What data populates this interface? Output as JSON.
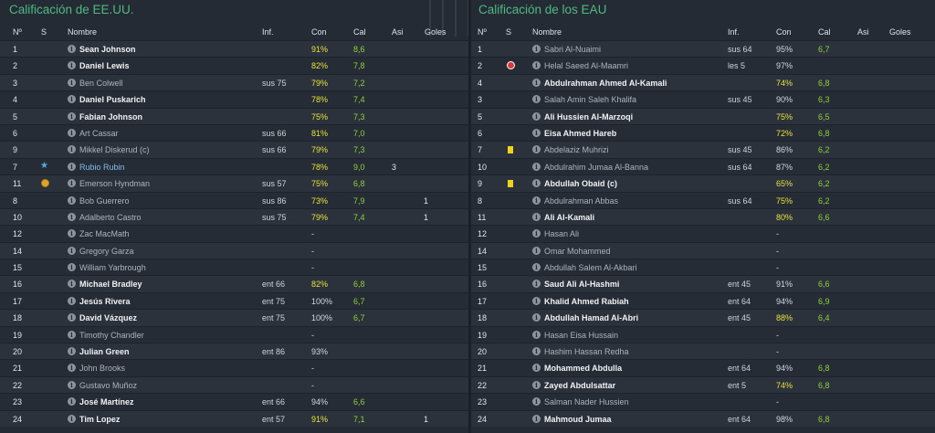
{
  "left": {
    "title": "Calificación de EE.UU.",
    "headers": {
      "num": "Nº",
      "s": "S",
      "name": "Nombre",
      "inf": "Inf.",
      "con": "Con",
      "cal": "Cal",
      "asi": "Asi",
      "goles": "Goles"
    },
    "rows": [
      {
        "num": "1",
        "s": "",
        "name": "Sean Johnson",
        "style": "bold",
        "inf": "",
        "con": "91%",
        "conc": "y",
        "cal": "8,6",
        "asi": "",
        "goles": ""
      },
      {
        "num": "2",
        "s": "",
        "name": "Daniel Lewis",
        "style": "bold",
        "inf": "",
        "con": "82%",
        "conc": "y",
        "cal": "7,8",
        "asi": "",
        "goles": ""
      },
      {
        "num": "3",
        "s": "",
        "name": "Ben Colwell",
        "style": "dim",
        "inf": "sus 75",
        "con": "79%",
        "conc": "y",
        "cal": "7,2",
        "asi": "",
        "goles": ""
      },
      {
        "num": "4",
        "s": "",
        "name": "Daniel Puskarich",
        "style": "bold",
        "inf": "",
        "con": "78%",
        "conc": "y",
        "cal": "7,4",
        "asi": "",
        "goles": ""
      },
      {
        "num": "5",
        "s": "",
        "name": "Fabian Johnson",
        "style": "bold",
        "inf": "",
        "con": "75%",
        "conc": "y",
        "cal": "7,3",
        "asi": "",
        "goles": ""
      },
      {
        "num": "6",
        "s": "",
        "name": "Art Cassar",
        "style": "dim",
        "inf": "sus 66",
        "con": "81%",
        "conc": "y",
        "cal": "7,0",
        "asi": "",
        "goles": ""
      },
      {
        "num": "9",
        "s": "",
        "name": "Mikkel Diskerud (c)",
        "style": "dim",
        "inf": "sus 66",
        "con": "79%",
        "conc": "y",
        "cal": "7,3",
        "asi": "",
        "goles": ""
      },
      {
        "num": "7",
        "s": "star",
        "name": "Rubio Rubin",
        "style": "sub",
        "inf": "",
        "con": "78%",
        "conc": "y",
        "cal": "9,0",
        "asi": "3",
        "goles": ""
      },
      {
        "num": "11",
        "s": "motm",
        "name": "Emerson Hyndman",
        "style": "dim",
        "inf": "sus 57",
        "con": "75%",
        "conc": "y",
        "cal": "6,8",
        "asi": "",
        "goles": ""
      },
      {
        "num": "8",
        "s": "",
        "name": "Bob Guerrero",
        "style": "dim",
        "inf": "sus 86",
        "con": "73%",
        "conc": "y",
        "cal": "7,9",
        "asi": "",
        "goles": "1"
      },
      {
        "num": "10",
        "s": "",
        "name": "Adalberto Castro",
        "style": "dim",
        "inf": "sus 75",
        "con": "79%",
        "conc": "y",
        "cal": "7,4",
        "asi": "",
        "goles": "1"
      },
      {
        "num": "12",
        "s": "",
        "name": "Zac MacMath",
        "style": "dim",
        "inf": "",
        "con": "-",
        "conc": "w",
        "cal": "",
        "asi": "",
        "goles": ""
      },
      {
        "num": "14",
        "s": "",
        "name": "Gregory Garza",
        "style": "dim",
        "inf": "",
        "con": "-",
        "conc": "w",
        "cal": "",
        "asi": "",
        "goles": ""
      },
      {
        "num": "15",
        "s": "",
        "name": "William Yarbrough",
        "style": "dim",
        "inf": "",
        "con": "-",
        "conc": "w",
        "cal": "",
        "asi": "",
        "goles": ""
      },
      {
        "num": "16",
        "s": "",
        "name": "Michael Bradley",
        "style": "bold",
        "inf": "ent 66",
        "con": "82%",
        "conc": "y",
        "cal": "6,8",
        "asi": "",
        "goles": ""
      },
      {
        "num": "17",
        "s": "",
        "name": "Jesús Rivera",
        "style": "bold",
        "inf": "ent 75",
        "con": "100%",
        "conc": "w",
        "cal": "6,7",
        "asi": "",
        "goles": ""
      },
      {
        "num": "18",
        "s": "",
        "name": "David Vázquez",
        "style": "bold",
        "inf": "ent 75",
        "con": "100%",
        "conc": "w",
        "cal": "6,7",
        "asi": "",
        "goles": ""
      },
      {
        "num": "19",
        "s": "",
        "name": "Timothy Chandler",
        "style": "dim",
        "inf": "",
        "con": "-",
        "conc": "w",
        "cal": "",
        "asi": "",
        "goles": ""
      },
      {
        "num": "20",
        "s": "",
        "name": "Julian Green",
        "style": "bold",
        "inf": "ent 86",
        "con": "93%",
        "conc": "w",
        "cal": "",
        "asi": "",
        "goles": ""
      },
      {
        "num": "21",
        "s": "",
        "name": "John Brooks",
        "style": "dim",
        "inf": "",
        "con": "-",
        "conc": "w",
        "cal": "",
        "asi": "",
        "goles": ""
      },
      {
        "num": "22",
        "s": "",
        "name": "Gustavo Muñoz",
        "style": "dim",
        "inf": "",
        "con": "-",
        "conc": "w",
        "cal": "",
        "asi": "",
        "goles": ""
      },
      {
        "num": "23",
        "s": "",
        "name": "José Martínez",
        "style": "bold",
        "inf": "ent 66",
        "con": "94%",
        "conc": "w",
        "cal": "6,6",
        "asi": "",
        "goles": ""
      },
      {
        "num": "24",
        "s": "",
        "name": "Tim Lopez",
        "style": "bold",
        "inf": "ent 57",
        "con": "91%",
        "conc": "y",
        "cal": "7,1",
        "asi": "",
        "goles": "1"
      }
    ]
  },
  "right": {
    "title": "Calificación de los EAU",
    "headers": {
      "num": "Nº",
      "s": "S",
      "name": "Nombre",
      "inf": "Inf.",
      "con": "Con",
      "cal": "Cal",
      "asi": "Asi",
      "goles": "Goles"
    },
    "rows": [
      {
        "num": "1",
        "s": "",
        "name": "Sabri Al-Nuaimi",
        "style": "dim",
        "inf": "sus 64",
        "con": "95%",
        "conc": "w",
        "cal": "6,7",
        "asi": "",
        "goles": ""
      },
      {
        "num": "2",
        "s": "injury",
        "name": "Helal Saeed Al-Maamri",
        "style": "dim",
        "inf": "les 5",
        "con": "97%",
        "conc": "w",
        "cal": "",
        "asi": "",
        "goles": ""
      },
      {
        "num": "4",
        "s": "",
        "name": "Abdulrahman Ahmed Al-Kamali",
        "style": "bold",
        "inf": "",
        "con": "74%",
        "conc": "y",
        "cal": "6,8",
        "asi": "",
        "goles": ""
      },
      {
        "num": "3",
        "s": "",
        "name": "Salah Amin Saleh Khalifa",
        "style": "dim",
        "inf": "sus 45",
        "con": "90%",
        "conc": "w",
        "cal": "6,3",
        "asi": "",
        "goles": ""
      },
      {
        "num": "5",
        "s": "",
        "name": "Ali Hussien Al-Marzoqi",
        "style": "bold",
        "inf": "",
        "con": "75%",
        "conc": "y",
        "cal": "6,5",
        "asi": "",
        "goles": ""
      },
      {
        "num": "6",
        "s": "",
        "name": "Eisa Ahmed Hareb",
        "style": "bold",
        "inf": "",
        "con": "72%",
        "conc": "y",
        "cal": "6,8",
        "asi": "",
        "goles": ""
      },
      {
        "num": "7",
        "s": "yellow",
        "name": "Abdelaziz Muhrizi",
        "style": "dim",
        "inf": "sus 45",
        "con": "86%",
        "conc": "w",
        "cal": "6,2",
        "asi": "",
        "goles": ""
      },
      {
        "num": "10",
        "s": "",
        "name": "Abdulrahim Jumaa Al-Banna",
        "style": "dim",
        "inf": "sus 64",
        "con": "87%",
        "conc": "w",
        "cal": "6,2",
        "asi": "",
        "goles": ""
      },
      {
        "num": "9",
        "s": "yellow",
        "name": "Abdullah Obaid (c)",
        "style": "bold",
        "inf": "",
        "con": "65%",
        "conc": "y",
        "cal": "6,2",
        "asi": "",
        "goles": ""
      },
      {
        "num": "8",
        "s": "",
        "name": "Abdulrahman Abbas",
        "style": "dim",
        "inf": "sus 64",
        "con": "75%",
        "conc": "y",
        "cal": "6,2",
        "asi": "",
        "goles": ""
      },
      {
        "num": "11",
        "s": "",
        "name": "Ali Al-Kamali",
        "style": "bold",
        "inf": "",
        "con": "80%",
        "conc": "y",
        "cal": "6,6",
        "asi": "",
        "goles": ""
      },
      {
        "num": "12",
        "s": "",
        "name": "Hasan Ali",
        "style": "dim",
        "inf": "",
        "con": "-",
        "conc": "w",
        "cal": "",
        "asi": "",
        "goles": ""
      },
      {
        "num": "14",
        "s": "",
        "name": "Omar Mohammed",
        "style": "dim",
        "inf": "",
        "con": "-",
        "conc": "w",
        "cal": "",
        "asi": "",
        "goles": ""
      },
      {
        "num": "15",
        "s": "",
        "name": "Abdullah Salem Al-Akbari",
        "style": "dim",
        "inf": "",
        "con": "-",
        "conc": "w",
        "cal": "",
        "asi": "",
        "goles": ""
      },
      {
        "num": "16",
        "s": "",
        "name": "Saud Ali Al-Hashmi",
        "style": "bold",
        "inf": "ent 45",
        "con": "91%",
        "conc": "w",
        "cal": "6,6",
        "asi": "",
        "goles": ""
      },
      {
        "num": "17",
        "s": "",
        "name": "Khalid Ahmed Rabiah",
        "style": "bold",
        "inf": "ent 64",
        "con": "94%",
        "conc": "w",
        "cal": "6,9",
        "asi": "",
        "goles": ""
      },
      {
        "num": "18",
        "s": "",
        "name": "Abdullah Hamad Al-Abri",
        "style": "bold",
        "inf": "ent 45",
        "con": "88%",
        "conc": "y",
        "cal": "6,4",
        "asi": "",
        "goles": ""
      },
      {
        "num": "19",
        "s": "",
        "name": "Hasan Eisa Hussain",
        "style": "dim",
        "inf": "",
        "con": "-",
        "conc": "w",
        "cal": "",
        "asi": "",
        "goles": ""
      },
      {
        "num": "20",
        "s": "",
        "name": "Hashim Hassan Redha",
        "style": "dim",
        "inf": "",
        "con": "-",
        "conc": "w",
        "cal": "",
        "asi": "",
        "goles": ""
      },
      {
        "num": "21",
        "s": "",
        "name": "Mohammed Abdulla",
        "style": "bold",
        "inf": "ent 64",
        "con": "94%",
        "conc": "w",
        "cal": "6,8",
        "asi": "",
        "goles": ""
      },
      {
        "num": "22",
        "s": "",
        "name": "Zayed Abdulsattar",
        "style": "bold",
        "inf": "ent 5",
        "con": "74%",
        "conc": "y",
        "cal": "6,8",
        "asi": "",
        "goles": ""
      },
      {
        "num": "23",
        "s": "",
        "name": "Salman Nader Hussien",
        "style": "dim",
        "inf": "",
        "con": "-",
        "conc": "w",
        "cal": "",
        "asi": "",
        "goles": ""
      },
      {
        "num": "24",
        "s": "",
        "name": "Mahmoud Jumaa",
        "style": "bold",
        "inf": "ent 64",
        "con": "98%",
        "conc": "w",
        "cal": "6,8",
        "asi": "",
        "goles": ""
      }
    ]
  },
  "colors": {
    "title": "#4fb980",
    "con_highlight": "#e9e13c",
    "cal": "#8fd13a",
    "substitute_name": "#7fbde9"
  }
}
